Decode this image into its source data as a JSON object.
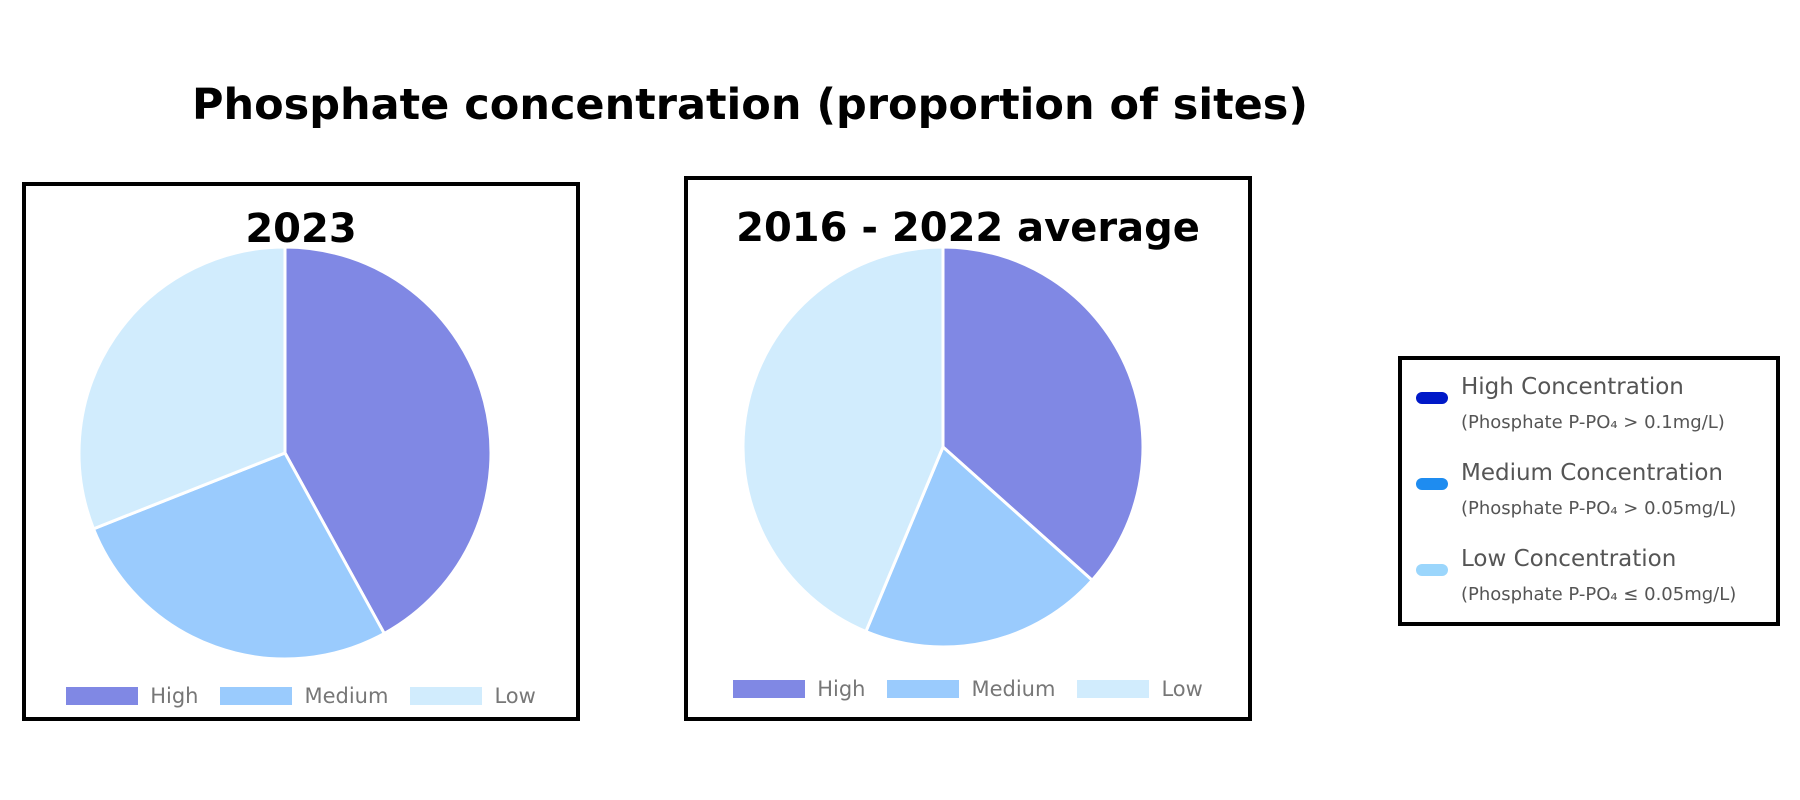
{
  "title": "Phosphate concentration (proportion of sites)",
  "chart_data": [
    {
      "type": "pie",
      "title": "2023",
      "categories": [
        "High",
        "Medium",
        "Low"
      ],
      "values": [
        0.42,
        0.27,
        0.31
      ],
      "colors": [
        "#8088e4",
        "#9acbfd",
        "#d1ecfd"
      ]
    },
    {
      "type": "pie",
      "title": "2016 - 2022 average",
      "categories": [
        "High",
        "Medium",
        "Low"
      ],
      "values": [
        0.366,
        0.197,
        0.437
      ],
      "colors": [
        "#8088e4",
        "#9acbfd",
        "#d1ecfd"
      ]
    }
  ],
  "key": {
    "items": [
      {
        "label": "High Concentration",
        "detail": "(Phosphate P-PO₄ > 0.1mg/L)",
        "color": "#0019c8"
      },
      {
        "label": "Medium Concentration",
        "detail": "(Phosphate P-PO₄ > 0.05mg/L)",
        "color": "#1e8cf0"
      },
      {
        "label": "Low Concentration",
        "detail": "(Phosphate P-PO₄ ≤ 0.05mg/L)",
        "color": "#9bd6fc"
      }
    ]
  }
}
